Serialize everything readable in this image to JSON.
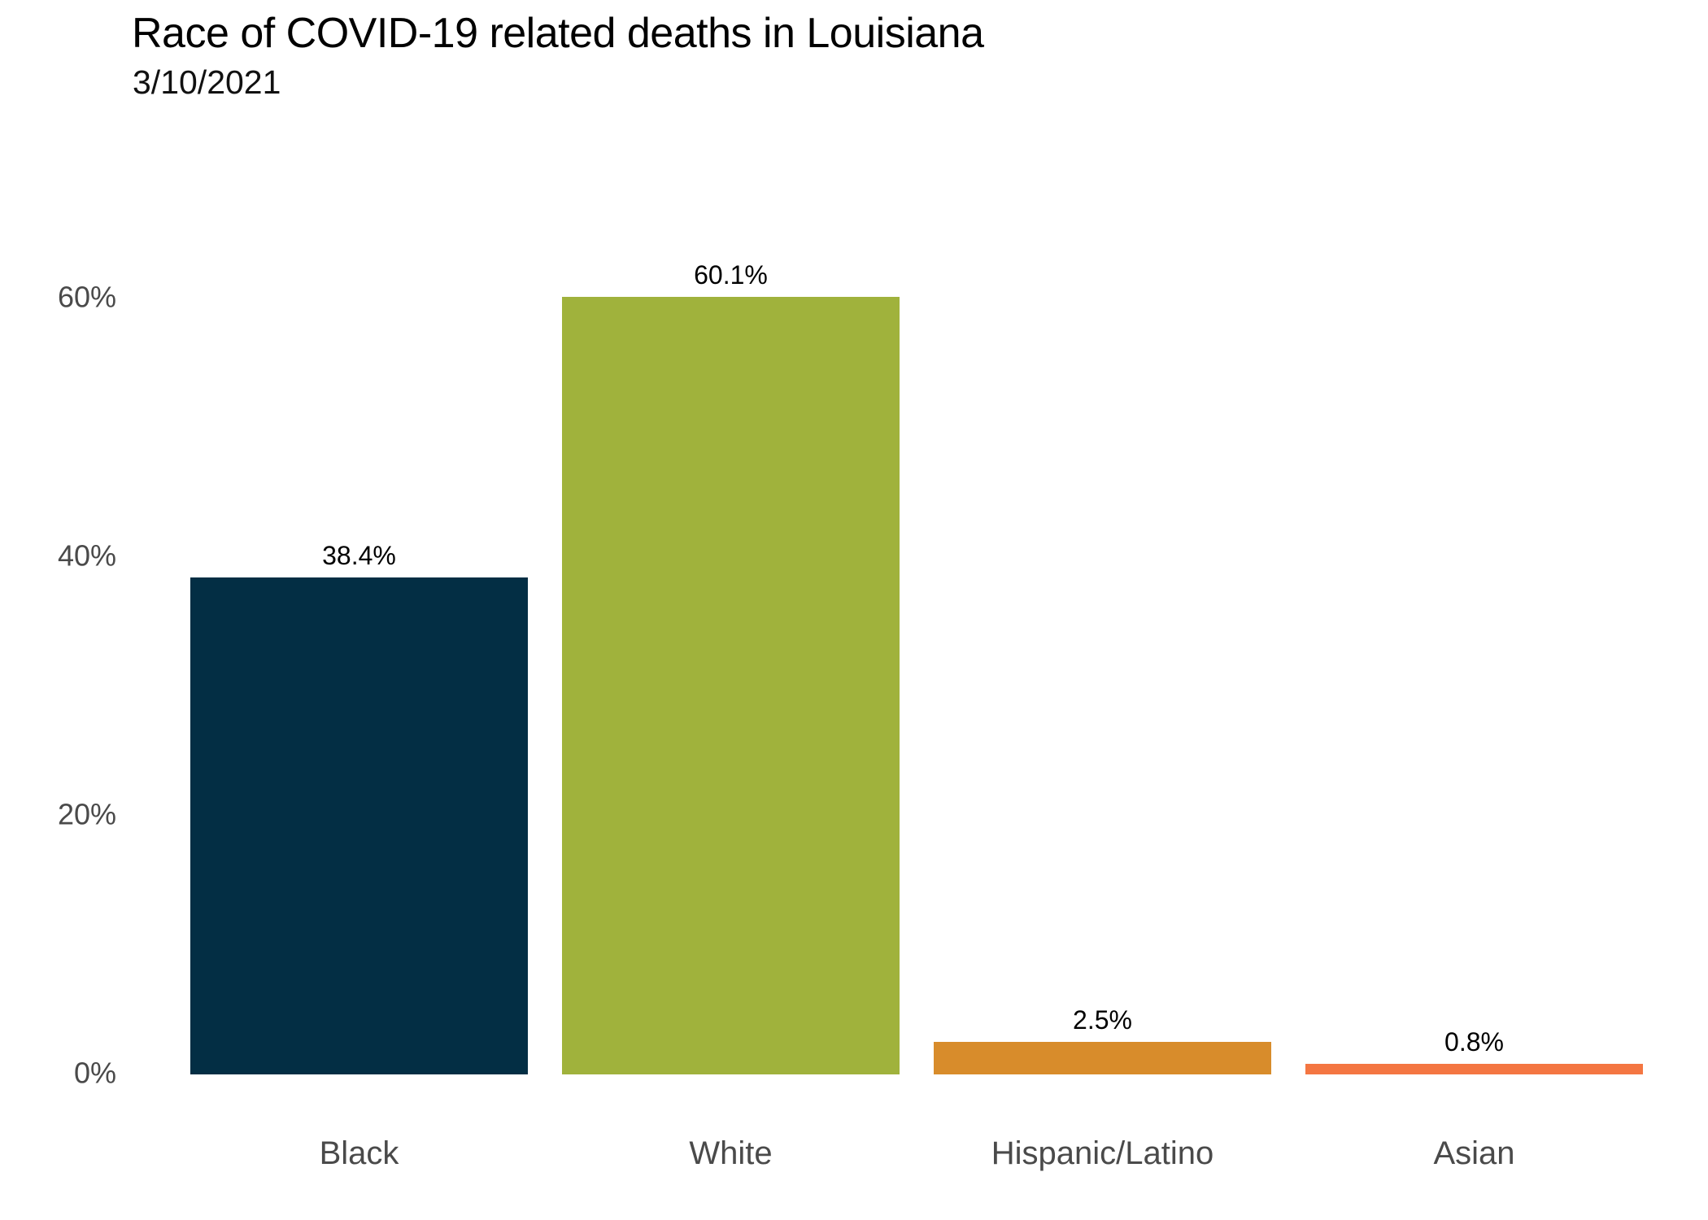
{
  "chart_data": {
    "type": "bar",
    "title": "Race of COVID-19 related deaths in Louisiana",
    "subtitle": "3/10/2021",
    "categories": [
      "Black",
      "White",
      "Hispanic/Latino",
      "Asian"
    ],
    "values": [
      38.4,
      60.1,
      2.5,
      0.8
    ],
    "value_labels": [
      "38.4%",
      "60.1%",
      "2.5%",
      "0.8%"
    ],
    "bar_colors": [
      "#032E44",
      "#A0B23C",
      "#D88C2B",
      "#F47642"
    ],
    "ytick_labels": [
      "0%",
      "20%",
      "40%",
      "60%"
    ],
    "ytick_values": [
      0,
      20,
      40,
      60
    ],
    "ylabel": "",
    "xlabel": "",
    "ylim": [
      0,
      63
    ],
    "grid": false,
    "legend": "none",
    "axis_text_color": "#4a4a4a",
    "background_color": "#ffffff"
  }
}
